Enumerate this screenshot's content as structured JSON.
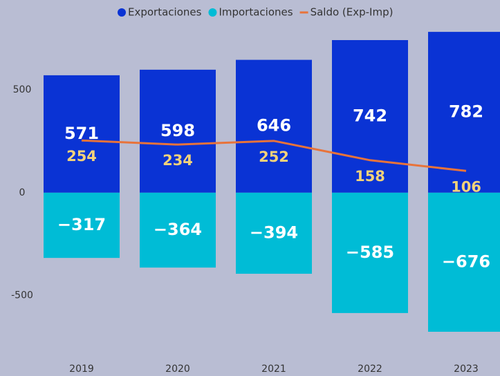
{
  "chart_data": {
    "type": "bar",
    "categories": [
      "2019",
      "2020",
      "2021",
      "2022",
      "2023"
    ],
    "series": [
      {
        "name": "Exportaciones",
        "color": "#0a33d4",
        "values": [
          571,
          598,
          646,
          742,
          782
        ]
      },
      {
        "name": "Importaciones",
        "color": "#00bcd6",
        "values": [
          -317,
          -364,
          -394,
          -585,
          -676
        ],
        "value_labels": [
          "−317",
          "−364",
          "−394",
          "−585",
          "−676"
        ]
      },
      {
        "name": "Saldo (Exp-Imp)",
        "color": "#e8733a",
        "type": "line",
        "values": [
          254,
          234,
          252,
          158,
          106
        ]
      }
    ],
    "ylim": [
      -750,
      900
    ],
    "yticks": [
      -500,
      0,
      500
    ]
  }
}
